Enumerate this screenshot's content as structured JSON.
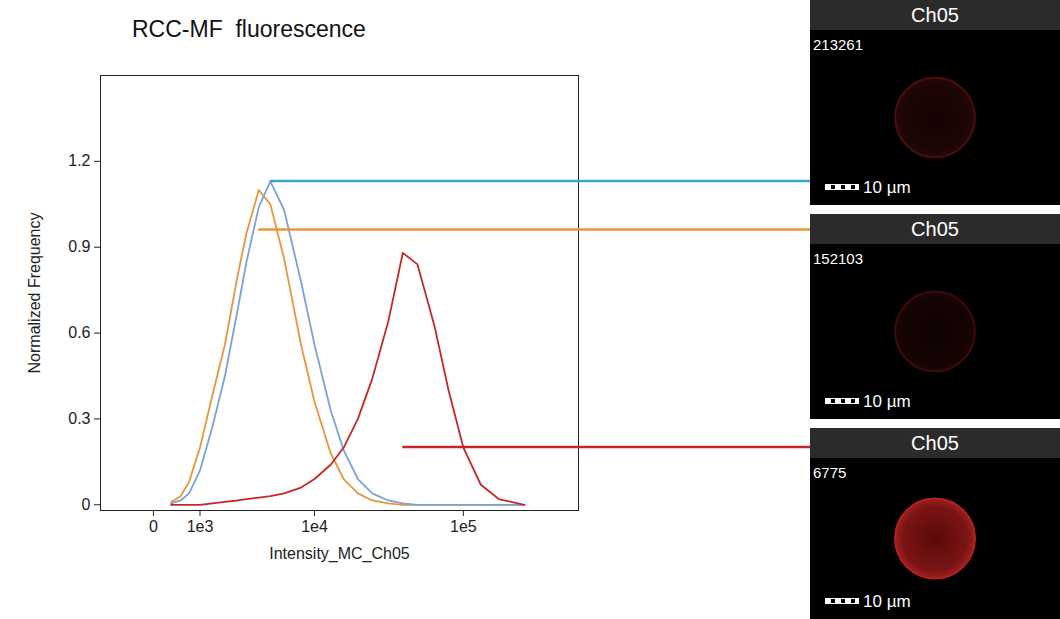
{
  "chart_data": {
    "type": "line",
    "title": "RCC-MF  fluorescence",
    "x_label": "Intensity_MC_Ch05",
    "y_label": "Normalized Frequency",
    "log": "x",
    "grid": false,
    "xlim": [
      -1200,
      560000
    ],
    "xticks": [
      0,
      {
        "value": 1000,
        "label": "1e3"
      },
      {
        "value": 10000,
        "label": "1e4"
      },
      {
        "value": 100000,
        "label": "1e5"
      }
    ],
    "ylim": [
      -0.02,
      1.5
    ],
    "yticks": [
      0,
      0.3,
      0.6,
      0.9,
      1.2
    ],
    "x": [
      300,
      500,
      700,
      1000,
      1400,
      1900,
      2500,
      3000,
      3800,
      4700,
      6000,
      8000,
      10000,
      13000,
      16000,
      20000,
      25000,
      32000,
      40000,
      50000,
      65000,
      80000,
      100000,
      130000,
      170000,
      250000
    ],
    "series": [
      {
        "color": "#e8963c",
        "values": [
          0.01,
          0.03,
          0.08,
          0.2,
          0.38,
          0.56,
          0.8,
          0.95,
          1.1,
          1.05,
          0.86,
          0.56,
          0.36,
          0.18,
          0.09,
          0.04,
          0.015,
          0.005,
          0,
          0,
          0,
          0,
          0,
          0,
          0,
          0
        ]
      },
      {
        "color": "#7ba3d6",
        "values": [
          0.005,
          0.015,
          0.04,
          0.12,
          0.27,
          0.45,
          0.68,
          0.85,
          1.04,
          1.13,
          1.03,
          0.78,
          0.56,
          0.33,
          0.19,
          0.09,
          0.04,
          0.015,
          0.005,
          0,
          0,
          0,
          0,
          0,
          0,
          0
        ]
      },
      {
        "color": "#c62828",
        "values": [
          0,
          0,
          0,
          0,
          0.005,
          0.01,
          0.015,
          0.02,
          0.025,
          0.03,
          0.04,
          0.06,
          0.09,
          0.14,
          0.2,
          0.3,
          0.44,
          0.64,
          0.88,
          0.84,
          0.62,
          0.4,
          0.2,
          0.07,
          0.02,
          0
        ]
      }
    ],
    "images": [
      {
        "header": "Ch05",
        "label": "213261",
        "scale_bar": "10 µm",
        "color": "#3ba3d8",
        "x": 4700,
        "y": 1.13
      },
      {
        "header": "Ch05",
        "label": "152103",
        "scale_bar": "10 µm",
        "color": "#e8963c",
        "x": 3800,
        "y": 0.96
      },
      {
        "header": "Ch05",
        "label": "6775",
        "scale_bar": "10 µm",
        "color": "#c62828",
        "x": 40000,
        "y": 0.2
      }
    ]
  }
}
